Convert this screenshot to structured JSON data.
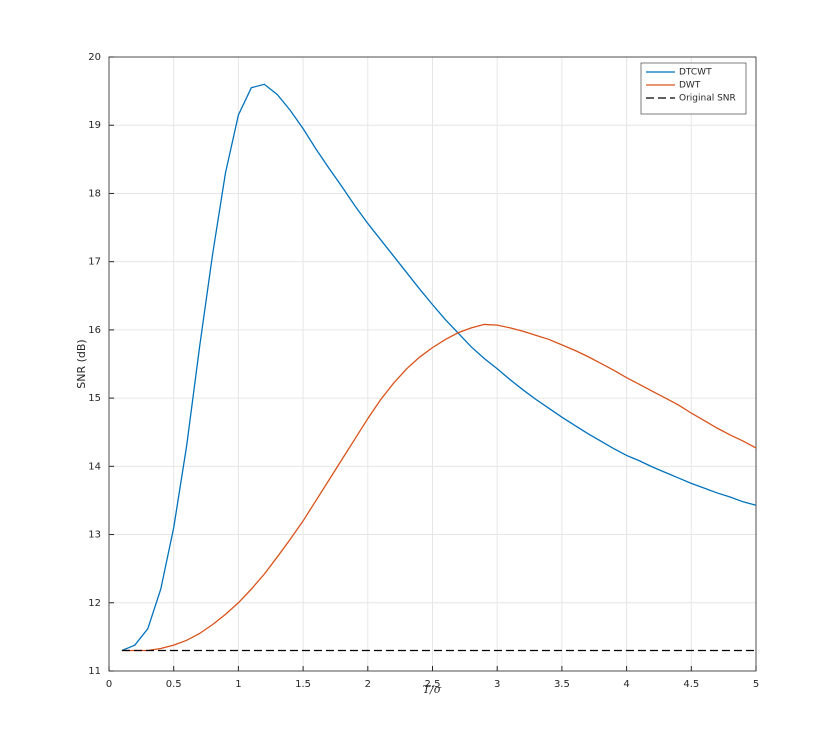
{
  "chart_data": {
    "type": "line",
    "x_label": "T/σ",
    "y_label": "SNR (dB)",
    "x": [
      0.1,
      0.2,
      0.3,
      0.4,
      0.5,
      0.6,
      0.7,
      0.8,
      0.9,
      1.0,
      1.1,
      1.2,
      1.3,
      1.4,
      1.5,
      1.6,
      1.7,
      1.8,
      1.9,
      2.0,
      2.1,
      2.2,
      2.3,
      2.4,
      2.5,
      2.6,
      2.7,
      2.8,
      2.9,
      3.0,
      3.1,
      3.2,
      3.3,
      3.4,
      3.5,
      3.6,
      3.7,
      3.8,
      3.9,
      4.0,
      4.1,
      4.2,
      4.3,
      4.4,
      4.5,
      4.6,
      4.7,
      4.8,
      4.9,
      5.0
    ],
    "series": [
      {
        "name": "DTCWT",
        "color": "#0072bd",
        "dash": false,
        "values": [
          11.3,
          11.38,
          11.62,
          12.2,
          13.1,
          14.3,
          15.75,
          17.1,
          18.3,
          19.15,
          19.55,
          19.6,
          19.45,
          19.22,
          18.95,
          18.65,
          18.37,
          18.1,
          17.82,
          17.56,
          17.32,
          17.08,
          16.84,
          16.6,
          16.37,
          16.15,
          15.95,
          15.75,
          15.58,
          15.43,
          15.27,
          15.12,
          14.98,
          14.85,
          14.72,
          14.6,
          14.48,
          14.37,
          14.26,
          14.16,
          14.08,
          13.99,
          13.91,
          13.83,
          13.75,
          13.68,
          13.61,
          13.55,
          13.48,
          13.43
        ]
      },
      {
        "name": "DWT",
        "color": "#d95319",
        "dash": false,
        "values": [
          11.3,
          11.3,
          11.3,
          11.33,
          11.38,
          11.45,
          11.55,
          11.68,
          11.83,
          12.0,
          12.2,
          12.42,
          12.67,
          12.93,
          13.2,
          13.5,
          13.8,
          14.1,
          14.4,
          14.7,
          14.98,
          15.22,
          15.43,
          15.6,
          15.74,
          15.86,
          15.96,
          16.03,
          16.08,
          16.07,
          16.03,
          15.98,
          15.92,
          15.86,
          15.78,
          15.7,
          15.61,
          15.51,
          15.41,
          15.3,
          15.2,
          15.1,
          15.0,
          14.9,
          14.78,
          14.67,
          14.56,
          14.46,
          14.37,
          14.27
        ]
      },
      {
        "name": "Original SNR",
        "color": "#000000",
        "dash": true,
        "values": [
          11.3,
          11.3,
          11.3,
          11.3,
          11.3,
          11.3,
          11.3,
          11.3,
          11.3,
          11.3,
          11.3,
          11.3,
          11.3,
          11.3,
          11.3,
          11.3,
          11.3,
          11.3,
          11.3,
          11.3,
          11.3,
          11.3,
          11.3,
          11.3,
          11.3,
          11.3,
          11.3,
          11.3,
          11.3,
          11.3,
          11.3,
          11.3,
          11.3,
          11.3,
          11.3,
          11.3,
          11.3,
          11.3,
          11.3,
          11.3,
          11.3,
          11.3,
          11.3,
          11.3,
          11.3,
          11.3,
          11.3,
          11.3,
          11.3,
          11.3
        ]
      }
    ],
    "xlim": [
      0,
      5
    ],
    "xticks": [
      0,
      0.5,
      1,
      1.5,
      2,
      2.5,
      3,
      3.5,
      4,
      4.5,
      5
    ],
    "ylim": [
      11,
      20
    ],
    "yticks": [
      11,
      12,
      13,
      14,
      15,
      16,
      17,
      18,
      19,
      20
    ],
    "grid": true,
    "legend": "top-right"
  }
}
